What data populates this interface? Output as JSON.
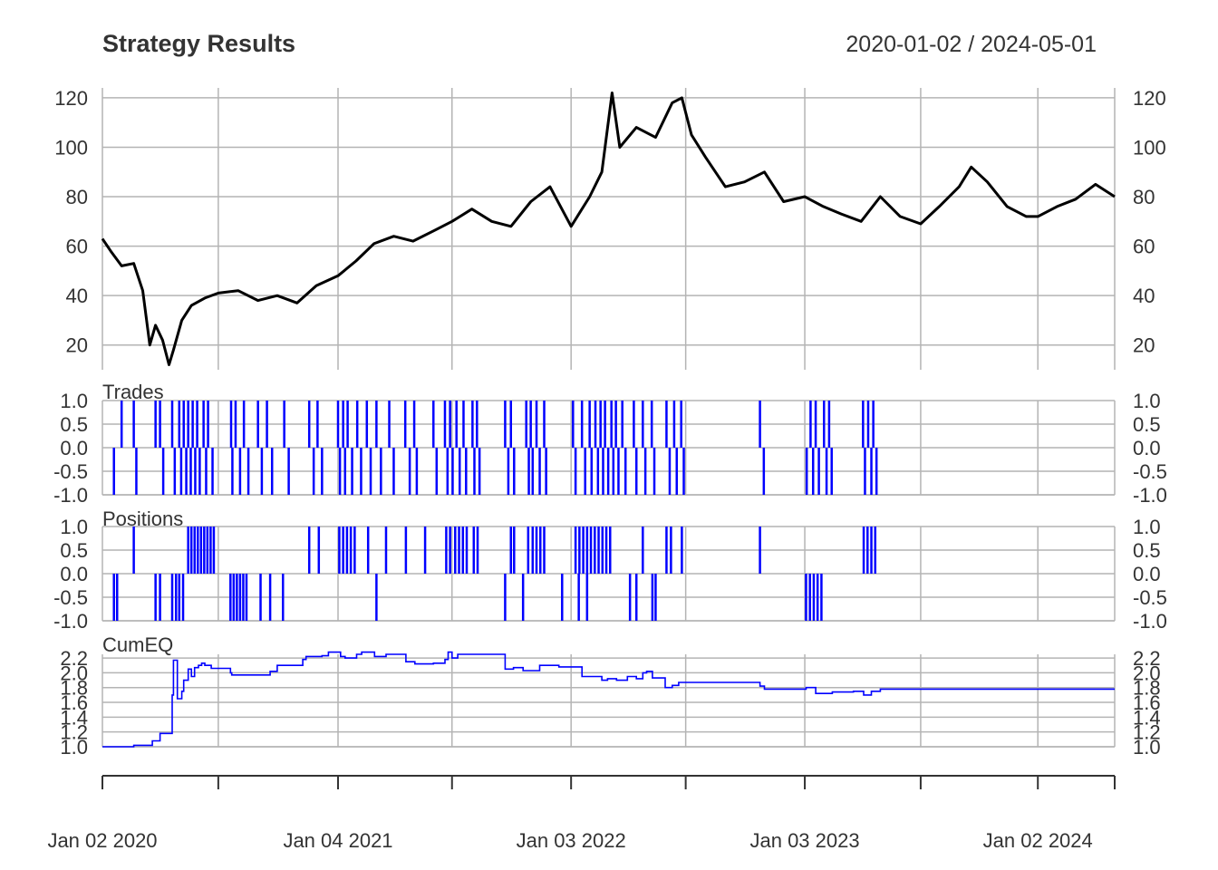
{
  "chart_data": {
    "type": "line",
    "title": "Strategy Results",
    "date_range": "2020-01-02 / 2024-05-01",
    "x_start": "2020-01-02",
    "x_end": "2024-05-01",
    "x_ticks": [
      {
        "date": "2020-01-02",
        "label": "Jan 02 2020"
      },
      {
        "date": "2020-07-01",
        "label": ""
      },
      {
        "date": "2021-01-04",
        "label": "Jan 04 2021"
      },
      {
        "date": "2021-07-01",
        "label": ""
      },
      {
        "date": "2022-01-03",
        "label": "Jan 03 2022"
      },
      {
        "date": "2022-07-01",
        "label": ""
      },
      {
        "date": "2023-01-03",
        "label": "Jan 03 2023"
      },
      {
        "date": "2023-07-03",
        "label": ""
      },
      {
        "date": "2024-01-02",
        "label": "Jan 02 2024"
      },
      {
        "date": "2024-05-01",
        "label": ""
      }
    ],
    "grid": true,
    "panels": [
      {
        "name": "price",
        "label": "",
        "color": "#000000",
        "ylim": [
          10,
          124
        ],
        "yticks": [
          "20",
          "40",
          "60",
          "80",
          "100",
          "120"
        ],
        "ytick_values": [
          20,
          40,
          60,
          80,
          100,
          120
        ],
        "series": {
          "x": [
            "2020-01-02",
            "2020-01-15",
            "2020-02-01",
            "2020-02-20",
            "2020-03-05",
            "2020-03-16",
            "2020-03-25",
            "2020-04-05",
            "2020-04-15",
            "2020-04-22",
            "2020-05-05",
            "2020-05-20",
            "2020-06-10",
            "2020-07-01",
            "2020-08-01",
            "2020-09-01",
            "2020-10-01",
            "2020-11-01",
            "2020-12-01",
            "2021-01-04",
            "2021-02-01",
            "2021-03-01",
            "2021-04-01",
            "2021-05-01",
            "2021-06-01",
            "2021-07-01",
            "2021-08-01",
            "2021-09-01",
            "2021-10-01",
            "2021-11-01",
            "2021-12-01",
            "2022-01-03",
            "2022-02-01",
            "2022-02-20",
            "2022-03-08",
            "2022-03-20",
            "2022-04-15",
            "2022-05-15",
            "2022-06-10",
            "2022-06-25",
            "2022-07-10",
            "2022-08-01",
            "2022-09-01",
            "2022-10-01",
            "2022-11-01",
            "2022-12-01",
            "2023-01-03",
            "2023-02-01",
            "2023-03-01",
            "2023-04-01",
            "2023-05-01",
            "2023-06-01",
            "2023-07-03",
            "2023-08-01",
            "2023-09-01",
            "2023-09-20",
            "2023-10-15",
            "2023-11-15",
            "2023-12-15",
            "2024-01-02",
            "2024-02-01",
            "2024-03-01",
            "2024-04-01",
            "2024-05-01"
          ],
          "y": [
            63,
            58,
            52,
            53,
            42,
            20,
            28,
            22,
            12,
            18,
            30,
            36,
            39,
            41,
            42,
            38,
            40,
            37,
            44,
            48,
            54,
            61,
            64,
            62,
            66,
            70,
            75,
            70,
            68,
            78,
            84,
            68,
            80,
            90,
            122,
            100,
            108,
            104,
            118,
            120,
            105,
            96,
            84,
            86,
            90,
            78,
            80,
            76,
            73,
            70,
            80,
            72,
            69,
            76,
            84,
            92,
            86,
            76,
            72,
            72,
            76,
            79,
            85,
            80
          ]
        }
      },
      {
        "name": "trades",
        "label": "Trades",
        "color": "#0000ff",
        "ylim": [
          -1,
          1
        ],
        "yticks": [
          "-1.0",
          "-0.5",
          "0.0",
          "0.5",
          "1.0"
        ],
        "ytick_values": [
          -1,
          -0.5,
          0,
          0.5,
          1
        ],
        "up_dates": [
          "2020-02-01",
          "2020-02-20",
          "2020-03-25",
          "2020-04-01",
          "2020-04-20",
          "2020-05-01",
          "2020-05-08",
          "2020-05-15",
          "2020-05-22",
          "2020-05-29",
          "2020-06-08",
          "2020-06-15",
          "2020-07-21",
          "2020-07-28",
          "2020-08-10",
          "2020-09-01",
          "2020-09-15",
          "2020-10-12",
          "2020-11-20",
          "2020-12-03",
          "2021-01-04",
          "2021-01-12",
          "2021-01-19",
          "2021-02-03",
          "2021-02-18",
          "2021-03-05",
          "2021-03-25",
          "2021-04-19",
          "2021-05-03",
          "2021-06-02",
          "2021-06-20",
          "2021-06-28",
          "2021-07-08",
          "2021-07-19",
          "2021-08-02",
          "2021-08-09",
          "2021-09-22",
          "2021-10-01",
          "2021-10-25",
          "2021-11-01",
          "2021-11-10",
          "2021-11-22",
          "2022-01-06",
          "2022-01-20",
          "2022-02-01",
          "2022-02-10",
          "2022-02-18",
          "2022-02-25",
          "2022-03-07",
          "2022-03-14",
          "2022-03-24",
          "2022-04-11",
          "2022-04-25",
          "2022-05-09",
          "2022-06-01",
          "2022-06-13",
          "2022-06-24",
          "2022-10-25",
          "2023-01-12",
          "2023-01-20",
          "2023-02-02",
          "2023-02-10",
          "2023-04-04",
          "2023-04-12",
          "2023-04-20"
        ],
        "down_dates": [
          "2020-01-20",
          "2020-02-24",
          "2020-04-06",
          "2020-04-24",
          "2020-05-04",
          "2020-05-12",
          "2020-05-19",
          "2020-05-26",
          "2020-06-02",
          "2020-06-12",
          "2020-06-22",
          "2020-07-23",
          "2020-08-04",
          "2020-08-17",
          "2020-09-07",
          "2020-09-23",
          "2020-10-19",
          "2020-11-27",
          "2020-12-10",
          "2021-01-07",
          "2021-01-15",
          "2021-01-26",
          "2021-02-09",
          "2021-02-24",
          "2021-03-12",
          "2021-04-01",
          "2021-04-26",
          "2021-05-07",
          "2021-06-07",
          "2021-06-24",
          "2021-07-02",
          "2021-07-13",
          "2021-07-23",
          "2021-08-05",
          "2021-08-13",
          "2021-09-27",
          "2021-10-06",
          "2021-10-29",
          "2021-11-04",
          "2021-11-15",
          "2021-11-25",
          "2022-01-10",
          "2022-01-25",
          "2022-02-04",
          "2022-02-14",
          "2022-02-22",
          "2022-03-02",
          "2022-03-10",
          "2022-03-18",
          "2022-03-29",
          "2022-04-15",
          "2022-04-29",
          "2022-05-13",
          "2022-06-06",
          "2022-06-17",
          "2022-06-28",
          "2022-10-31",
          "2023-01-06",
          "2023-01-16",
          "2023-01-25",
          "2023-02-06",
          "2023-02-14",
          "2023-04-07",
          "2023-04-17",
          "2023-04-25"
        ]
      },
      {
        "name": "positions",
        "label": "Positions",
        "color": "#0000ff",
        "ylim": [
          -1,
          1
        ],
        "yticks": [
          "-1.0",
          "-0.5",
          "0.0",
          "0.5",
          "1.0"
        ],
        "ytick_values": [
          -1,
          -0.5,
          0,
          0.5,
          1
        ],
        "long_dates": [
          "2020-02-20",
          "2020-05-15",
          "2020-05-20",
          "2020-05-25",
          "2020-05-30",
          "2020-06-04",
          "2020-06-09",
          "2020-06-14",
          "2020-06-19",
          "2020-06-24",
          "2020-11-20",
          "2020-12-05",
          "2021-01-06",
          "2021-01-12",
          "2021-01-18",
          "2021-01-24",
          "2021-01-30",
          "2021-02-20",
          "2021-03-20",
          "2021-04-20",
          "2021-05-20",
          "2021-06-22",
          "2021-06-28",
          "2021-07-06",
          "2021-07-12",
          "2021-07-18",
          "2021-07-24",
          "2021-08-04",
          "2021-08-10",
          "2021-10-01",
          "2021-10-06",
          "2021-10-28",
          "2021-11-04",
          "2021-11-10",
          "2021-11-16",
          "2021-11-22",
          "2022-01-10",
          "2022-01-16",
          "2022-01-22",
          "2022-01-28",
          "2022-02-03",
          "2022-02-09",
          "2022-02-15",
          "2022-02-21",
          "2022-02-27",
          "2022-03-05",
          "2022-04-25",
          "2022-06-01",
          "2022-06-08",
          "2022-06-25",
          "2022-10-25",
          "2023-04-05",
          "2023-04-11",
          "2023-04-17",
          "2023-04-23"
        ],
        "short_dates": [
          "2020-01-20",
          "2020-01-25",
          "2020-03-25",
          "2020-04-01",
          "2020-04-20",
          "2020-04-26",
          "2020-05-01",
          "2020-05-07",
          "2020-07-20",
          "2020-07-25",
          "2020-07-30",
          "2020-08-04",
          "2020-08-09",
          "2020-08-14",
          "2020-09-05",
          "2020-09-20",
          "2020-10-10",
          "2021-03-05",
          "2021-09-22",
          "2021-10-20",
          "2021-12-20",
          "2022-01-15",
          "2022-01-28",
          "2022-04-05",
          "2022-04-15",
          "2022-05-10",
          "2022-05-15",
          "2023-01-05",
          "2023-01-11",
          "2023-01-17",
          "2023-01-23",
          "2023-01-29"
        ]
      },
      {
        "name": "cumeq",
        "label": "CumEQ",
        "color": "#0000ff",
        "ylim": [
          1.0,
          2.25
        ],
        "yticks": [
          "1.0",
          "1.2",
          "1.4",
          "1.6",
          "1.8",
          "2.0",
          "2.2"
        ],
        "ytick_values": [
          1.0,
          1.2,
          1.4,
          1.6,
          1.8,
          2.0,
          2.2
        ],
        "series": {
          "x": [
            "2020-01-02",
            "2020-02-20",
            "2020-03-20",
            "2020-04-01",
            "2020-04-20",
            "2020-04-22",
            "2020-04-28",
            "2020-05-05",
            "2020-05-08",
            "2020-05-15",
            "2020-05-20",
            "2020-05-25",
            "2020-05-31",
            "2020-06-05",
            "2020-06-10",
            "2020-06-20",
            "2020-07-20",
            "2020-07-22",
            "2020-09-15",
            "2020-09-20",
            "2020-10-01",
            "2020-11-10",
            "2020-11-15",
            "2020-12-10",
            "2020-12-20",
            "2021-01-08",
            "2021-01-15",
            "2021-02-02",
            "2021-02-10",
            "2021-03-02",
            "2021-03-20",
            "2021-04-20",
            "2021-05-04",
            "2021-06-02",
            "2021-06-20",
            "2021-06-25",
            "2021-07-01",
            "2021-07-10",
            "2021-09-22",
            "2021-09-28",
            "2021-10-05",
            "2021-10-20",
            "2021-11-15",
            "2021-12-15",
            "2022-01-20",
            "2022-02-20",
            "2022-03-01",
            "2022-03-15",
            "2022-04-01",
            "2022-04-15",
            "2022-04-25",
            "2022-05-01",
            "2022-05-10",
            "2022-05-30",
            "2022-06-10",
            "2022-06-20",
            "2022-10-25",
            "2022-11-01",
            "2023-01-05",
            "2023-01-20",
            "2023-02-15",
            "2023-03-20",
            "2023-04-05",
            "2023-04-17",
            "2023-05-01",
            "2024-05-01"
          ],
          "y": [
            1.0,
            1.02,
            1.08,
            1.18,
            1.7,
            2.17,
            1.65,
            1.75,
            1.9,
            2.05,
            1.95,
            2.07,
            2.1,
            2.13,
            2.1,
            2.06,
            2.0,
            1.97,
            1.97,
            2.02,
            2.1,
            2.18,
            2.22,
            2.23,
            2.28,
            2.22,
            2.2,
            2.25,
            2.28,
            2.22,
            2.25,
            2.15,
            2.12,
            2.13,
            2.18,
            2.28,
            2.2,
            2.25,
            2.05,
            2.05,
            2.07,
            2.03,
            2.1,
            2.08,
            1.95,
            1.9,
            1.92,
            1.9,
            1.95,
            1.92,
            2.0,
            2.02,
            1.93,
            1.8,
            1.83,
            1.87,
            1.82,
            1.78,
            1.8,
            1.72,
            1.74,
            1.75,
            1.7,
            1.75,
            1.78,
            1.78
          ]
        }
      }
    ]
  }
}
